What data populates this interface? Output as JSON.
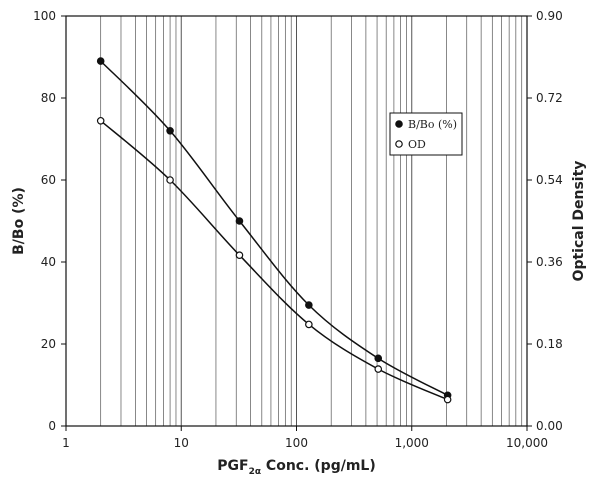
{
  "chart_data": {
    "type": "line",
    "x_scale": "log",
    "x": [
      2,
      8,
      32,
      128,
      512,
      2048
    ],
    "xlim": [
      1,
      10000
    ],
    "x_ticks": [
      1,
      10,
      100,
      1000,
      10000
    ],
    "x_tick_labels": [
      "1",
      "10",
      "100",
      "1,000",
      "10,000"
    ],
    "xlabel": {
      "prefix": "PGF",
      "sub": "2α",
      "suffix": " Conc. (pg/mL)"
    },
    "ylabel": "B/Bo (%)",
    "ylim": [
      0,
      100
    ],
    "y_ticks": [
      0,
      20,
      40,
      60,
      80,
      100
    ],
    "y_tick_labels": [
      "0",
      "20",
      "40",
      "60",
      "80",
      "100"
    ],
    "y2label": "Optical Density",
    "y2lim": [
      0,
      0.9
    ],
    "y2_ticks": [
      0,
      0.18,
      0.36,
      0.54,
      0.72,
      0.9
    ],
    "y2_tick_labels": [
      "0.00",
      "0.18",
      "0.36",
      "0.54",
      "0.72",
      "0.90"
    ],
    "grid": "vertical log minor/major gridlines",
    "legend_position": "right, upper-middle",
    "series": [
      {
        "name": "B/Bo (%)",
        "axis": "left",
        "marker": "filled-circle",
        "values": [
          89,
          72,
          50,
          29.5,
          16.5,
          7.5
        ]
      },
      {
        "name": "OD",
        "axis": "right",
        "marker": "open-circle",
        "values": [
          0.67,
          0.54,
          0.375,
          0.223,
          0.125,
          0.058
        ]
      }
    ],
    "colors": {
      "line": "#111111",
      "grid": "#555555",
      "frame": "#111111"
    }
  }
}
